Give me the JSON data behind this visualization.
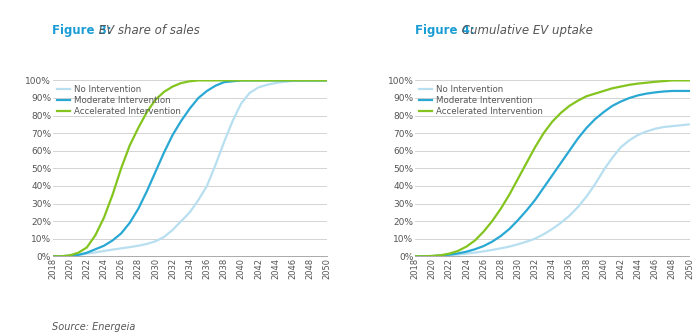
{
  "fig3_title_bold": "Figure 3:",
  "fig3_title_italic": " EV share of sales",
  "fig4_title_bold": "Figure 4:",
  "fig4_title_italic": " Cumulative EV uptake",
  "source_text": "Source: Energeia",
  "legend_labels": [
    "No Intervention",
    "Moderate Intervention",
    "Accelerated Intervention"
  ],
  "colors": {
    "no_intervention": "#b8dff0",
    "moderate_intervention": "#29a8d4",
    "accelerated_intervention": "#84c41e"
  },
  "title_color": "#1a9cd4",
  "text_color": "#555555",
  "x_ticks": [
    2018,
    2020,
    2022,
    2024,
    2026,
    2028,
    2030,
    2032,
    2034,
    2036,
    2038,
    2040,
    2042,
    2044,
    2046,
    2048,
    2050
  ],
  "y_ticks": [
    0,
    10,
    20,
    30,
    40,
    50,
    60,
    70,
    80,
    90,
    100
  ],
  "fig3": {
    "no_x": [
      2018,
      2019,
      2020,
      2021,
      2022,
      2023,
      2024,
      2025,
      2026,
      2027,
      2028,
      2029,
      2030,
      2031,
      2032,
      2033,
      2034,
      2035,
      2036,
      2037,
      2038,
      2039,
      2040,
      2041,
      2042,
      2043,
      2044,
      2045,
      2046,
      2047,
      2048,
      2049,
      2050
    ],
    "no_y": [
      0,
      0,
      0.3,
      0.6,
      1.5,
      2.2,
      3.0,
      3.8,
      4.5,
      5.2,
      6.0,
      7.0,
      8.5,
      11,
      15,
      20,
      25,
      32,
      40,
      52,
      65,
      77,
      87,
      93,
      96,
      97.5,
      98.5,
      99.2,
      99.7,
      100,
      100,
      100,
      100
    ],
    "mod_x": [
      2018,
      2019,
      2020,
      2021,
      2022,
      2023,
      2024,
      2025,
      2026,
      2027,
      2028,
      2029,
      2030,
      2031,
      2032,
      2033,
      2034,
      2035,
      2036,
      2037,
      2038,
      2039,
      2040,
      2041,
      2042,
      2043,
      2044,
      2045,
      2046,
      2047,
      2048,
      2049,
      2050
    ],
    "mod_y": [
      0,
      0,
      0.3,
      0.8,
      2,
      4,
      6,
      9,
      13,
      19,
      27,
      37,
      48,
      59,
      69,
      77,
      84,
      90,
      94,
      97,
      99,
      99.5,
      100,
      100,
      100,
      100,
      100,
      100,
      100,
      100,
      100,
      100,
      100
    ],
    "acc_x": [
      2018,
      2019,
      2020,
      2021,
      2022,
      2023,
      2024,
      2025,
      2026,
      2027,
      2028,
      2029,
      2030,
      2031,
      2032,
      2033,
      2034,
      2035,
      2036,
      2037,
      2038,
      2039,
      2040,
      2041,
      2042,
      2043,
      2044,
      2045,
      2046,
      2047,
      2048,
      2049,
      2050
    ],
    "acc_y": [
      0,
      0,
      0.5,
      2,
      5,
      12,
      22,
      35,
      50,
      63,
      73,
      82,
      89,
      93.5,
      96.5,
      98.5,
      99.5,
      100,
      100,
      100,
      100,
      100,
      100,
      100,
      100,
      100,
      100,
      100,
      100,
      100,
      100,
      100,
      100
    ]
  },
  "fig4": {
    "no_x": [
      2018,
      2019,
      2020,
      2021,
      2022,
      2023,
      2024,
      2025,
      2026,
      2027,
      2028,
      2029,
      2030,
      2031,
      2032,
      2033,
      2034,
      2035,
      2036,
      2037,
      2038,
      2039,
      2040,
      2041,
      2042,
      2043,
      2044,
      2045,
      2046,
      2047,
      2048,
      2049,
      2050
    ],
    "no_y": [
      0,
      0,
      0.1,
      0.3,
      0.6,
      1.0,
      1.5,
      2.1,
      2.8,
      3.6,
      4.5,
      5.5,
      6.8,
      8.3,
      10,
      12.5,
      15.5,
      19,
      23,
      28,
      34,
      41,
      49,
      56,
      62,
      66,
      69,
      71,
      72.5,
      73.5,
      74,
      74.5,
      75
    ],
    "mod_x": [
      2018,
      2019,
      2020,
      2021,
      2022,
      2023,
      2024,
      2025,
      2026,
      2027,
      2028,
      2029,
      2030,
      2031,
      2032,
      2033,
      2034,
      2035,
      2036,
      2037,
      2038,
      2039,
      2040,
      2041,
      2042,
      2043,
      2044,
      2045,
      2046,
      2047,
      2048,
      2049,
      2050
    ],
    "mod_y": [
      0,
      0,
      0.1,
      0.4,
      0.9,
      1.6,
      2.6,
      4.0,
      5.8,
      8.3,
      11.5,
      15.5,
      20.5,
      26,
      32,
      39,
      46,
      53,
      60,
      67,
      73,
      78,
      82,
      85.5,
      88,
      90,
      91.5,
      92.5,
      93.2,
      93.7,
      94,
      94,
      94
    ],
    "acc_x": [
      2018,
      2019,
      2020,
      2021,
      2022,
      2023,
      2024,
      2025,
      2026,
      2027,
      2028,
      2029,
      2030,
      2031,
      2032,
      2033,
      2034,
      2035,
      2036,
      2037,
      2038,
      2039,
      2040,
      2041,
      2042,
      2043,
      2044,
      2045,
      2046,
      2047,
      2048,
      2049,
      2050
    ],
    "acc_y": [
      0,
      0,
      0.2,
      0.6,
      1.5,
      3.0,
      5.5,
      9,
      14,
      20,
      27,
      35,
      44,
      53,
      62,
      70,
      76.5,
      81.5,
      85.5,
      88.5,
      91,
      92.5,
      94,
      95.5,
      96.5,
      97.5,
      98.2,
      98.7,
      99.2,
      99.6,
      100,
      100,
      100
    ]
  },
  "line_width": 1.6,
  "grid_color": "#cccccc",
  "background_color": "#ffffff"
}
